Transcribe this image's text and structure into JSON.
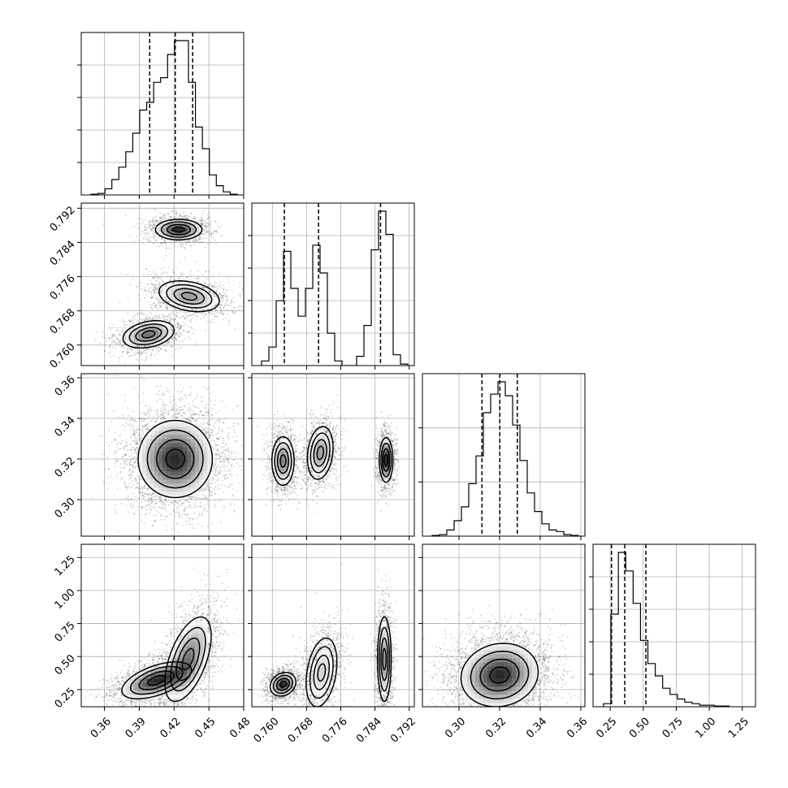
{
  "chart_data": {
    "type": "corner",
    "grid": true,
    "variables": [
      {
        "index": 0,
        "range": [
          0.34,
          0.48
        ],
        "ticks": [
          0.36,
          0.39,
          0.42,
          0.45,
          0.48
        ],
        "tick_labels": [
          "0.36",
          "0.39",
          "0.42",
          "0.45",
          "0.48"
        ],
        "quantiles": [
          0.399,
          0.421,
          0.436
        ]
      },
      {
        "index": 1,
        "range": [
          0.7552,
          0.7932
        ],
        "ticks": [
          0.76,
          0.768,
          0.776,
          0.784,
          0.792
        ],
        "tick_labels": [
          "0.760",
          "0.768",
          "0.776",
          "0.784",
          "0.792"
        ],
        "quantiles": [
          0.7628,
          0.7708,
          0.7853
        ]
      },
      {
        "index": 2,
        "range": [
          0.282,
          0.362
        ],
        "ticks": [
          0.3,
          0.32,
          0.34,
          0.36
        ],
        "tick_labels": [
          "0.30",
          "0.32",
          "0.34",
          "0.36"
        ],
        "quantiles": [
          0.3113,
          0.3201,
          0.3287
        ]
      },
      {
        "index": 3,
        "range": [
          0.12,
          1.35
        ],
        "ticks": [
          0.25,
          0.5,
          0.75,
          1.0,
          1.25
        ],
        "tick_labels": [
          "0.25",
          "0.50",
          "0.75",
          "1.00",
          "1.25"
        ],
        "quantiles": [
          0.26,
          0.36,
          0.52
        ]
      }
    ],
    "histograms": [
      {
        "var": 0,
        "heights": [
          0.005,
          0.01,
          0.04,
          0.1,
          0.18,
          0.28,
          0.4,
          0.55,
          0.6,
          0.73,
          0.76,
          0.91,
          1.0,
          1.0,
          0.73,
          0.44,
          0.3,
          0.13,
          0.06,
          0.02,
          0.005
        ]
      },
      {
        "var": 1,
        "heights": [
          0.03,
          0.12,
          0.42,
          0.74,
          0.5,
          0.32,
          0.5,
          0.78,
          0.6,
          0.21,
          0.03,
          0.0,
          0.0,
          0.06,
          0.26,
          0.75,
          1.0,
          0.85,
          0.07,
          0.01
        ]
      },
      {
        "var": 2,
        "heights": [
          0.005,
          0.01,
          0.04,
          0.1,
          0.19,
          0.34,
          0.52,
          0.8,
          0.92,
          1.0,
          0.91,
          0.72,
          0.49,
          0.28,
          0.16,
          0.08,
          0.04,
          0.03,
          0.01,
          0.005
        ]
      },
      {
        "var": 3,
        "heights": [
          0.02,
          0.6,
          1.0,
          0.88,
          0.67,
          0.43,
          0.28,
          0.2,
          0.12,
          0.08,
          0.05,
          0.03,
          0.02,
          0.01,
          0.01,
          0.005,
          0.005
        ]
      }
    ],
    "scatter_panels": [
      {
        "x_var": 0,
        "y_var": 1,
        "modes": [
          {
            "cx": 0.424,
            "cy": 0.787,
            "sx": 0.01,
            "sy": 0.0012,
            "rho": 0.0,
            "w": 0.34
          },
          {
            "cx": 0.433,
            "cy": 0.7714,
            "sx": 0.013,
            "sy": 0.0018,
            "rho": -0.3,
            "w": 0.33
          },
          {
            "cx": 0.398,
            "cy": 0.7625,
            "sx": 0.011,
            "sy": 0.0016,
            "rho": 0.3,
            "w": 0.33
          }
        ]
      },
      {
        "x_var": 0,
        "y_var": 2,
        "modes": [
          {
            "cx": 0.421,
            "cy": 0.32,
            "sx": 0.016,
            "sy": 0.0095,
            "rho": 0.0,
            "w": 1.0
          }
        ]
      },
      {
        "x_var": 1,
        "y_var": 2,
        "modes": [
          {
            "cx": 0.7625,
            "cy": 0.319,
            "sx": 0.0013,
            "sy": 0.006,
            "rho": 0.0,
            "w": 0.33
          },
          {
            "cx": 0.7712,
            "cy": 0.323,
            "sx": 0.0015,
            "sy": 0.0065,
            "rho": 0.2,
            "w": 0.33
          },
          {
            "cx": 0.7866,
            "cy": 0.3195,
            "sx": 0.0008,
            "sy": 0.0055,
            "rho": 0.0,
            "w": 0.34
          }
        ]
      },
      {
        "x_var": 0,
        "y_var": 3,
        "modes": [
          {
            "cx": 0.405,
            "cy": 0.32,
            "sx": 0.015,
            "sy": 0.07,
            "rho": 0.55,
            "w": 0.5
          },
          {
            "cx": 0.432,
            "cy": 0.48,
            "sx": 0.01,
            "sy": 0.16,
            "rho": 0.55,
            "w": 0.5
          }
        ]
      },
      {
        "x_var": 1,
        "y_var": 3,
        "modes": [
          {
            "cx": 0.7625,
            "cy": 0.29,
            "sx": 0.0015,
            "sy": 0.045,
            "rho": 0.2,
            "w": 0.33
          },
          {
            "cx": 0.7715,
            "cy": 0.38,
            "sx": 0.0018,
            "sy": 0.13,
            "rho": 0.3,
            "w": 0.33
          },
          {
            "cx": 0.7862,
            "cy": 0.48,
            "sx": 0.0008,
            "sy": 0.16,
            "rho": 0.0,
            "w": 0.34
          }
        ]
      },
      {
        "x_var": 2,
        "y_var": 3,
        "modes": [
          {
            "cx": 0.32,
            "cy": 0.36,
            "sx": 0.0095,
            "sy": 0.12,
            "rho": 0.1,
            "w": 1.0
          }
        ]
      }
    ],
    "colors": {
      "ink": "#000000",
      "grid": "#b0b0b0",
      "background": "#ffffff"
    }
  }
}
